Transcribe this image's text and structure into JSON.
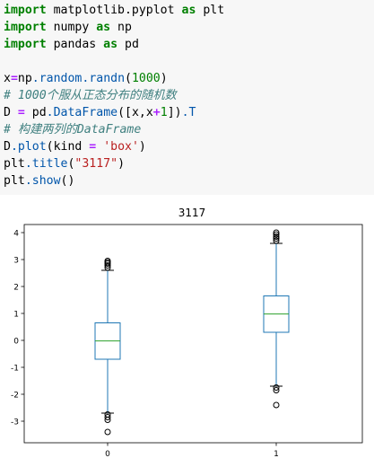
{
  "code": {
    "lines": [
      [
        {
          "t": "import",
          "c": "kw"
        },
        {
          "t": " matplotlib.pyplot ",
          "c": ""
        },
        {
          "t": "as",
          "c": "kw"
        },
        {
          "t": " plt",
          "c": ""
        }
      ],
      [
        {
          "t": "import",
          "c": "kw"
        },
        {
          "t": " numpy ",
          "c": ""
        },
        {
          "t": "as",
          "c": "kw"
        },
        {
          "t": " np",
          "c": ""
        }
      ],
      [
        {
          "t": "import",
          "c": "kw"
        },
        {
          "t": " pandas ",
          "c": ""
        },
        {
          "t": "as",
          "c": "kw"
        },
        {
          "t": " pd",
          "c": ""
        }
      ],
      [],
      [
        {
          "t": "x",
          "c": ""
        },
        {
          "t": "=",
          "c": "op"
        },
        {
          "t": "np",
          "c": ""
        },
        {
          "t": ".random.randn",
          "c": "attr"
        },
        {
          "t": "(",
          "c": ""
        },
        {
          "t": "1000",
          "c": "num"
        },
        {
          "t": ")",
          "c": ""
        }
      ],
      [
        {
          "t": "# 1000个服从正态分布的随机数",
          "c": "comment"
        }
      ],
      [
        {
          "t": "D ",
          "c": ""
        },
        {
          "t": "=",
          "c": "op"
        },
        {
          "t": " pd",
          "c": ""
        },
        {
          "t": ".DataFrame",
          "c": "attr"
        },
        {
          "t": "([x,x",
          "c": ""
        },
        {
          "t": "+",
          "c": "op"
        },
        {
          "t": "1",
          "c": "num"
        },
        {
          "t": "])",
          "c": ""
        },
        {
          "t": ".T",
          "c": "attr"
        }
      ],
      [
        {
          "t": "# 构建两列的DataFrame",
          "c": "comment"
        }
      ],
      [
        {
          "t": "D",
          "c": ""
        },
        {
          "t": ".plot",
          "c": "attr"
        },
        {
          "t": "(kind ",
          "c": ""
        },
        {
          "t": "=",
          "c": "op"
        },
        {
          "t": " ",
          "c": ""
        },
        {
          "t": "'box'",
          "c": "str"
        },
        {
          "t": ")",
          "c": ""
        }
      ],
      [
        {
          "t": "plt",
          "c": ""
        },
        {
          "t": ".title",
          "c": "attr"
        },
        {
          "t": "(",
          "c": ""
        },
        {
          "t": "\"3117\"",
          "c": "str"
        },
        {
          "t": ")",
          "c": ""
        }
      ],
      [
        {
          "t": "plt",
          "c": ""
        },
        {
          "t": ".show",
          "c": "attr"
        },
        {
          "t": "()",
          "c": ""
        }
      ]
    ]
  },
  "chart_data": {
    "type": "box",
    "title": "3117",
    "categories": [
      "0",
      "1"
    ],
    "ylim": [
      -3.8,
      4.3
    ],
    "yticks": [
      -3,
      -2,
      -1,
      0,
      1,
      2,
      3,
      4
    ],
    "boxes": [
      {
        "whislo": -2.7,
        "q1": -0.7,
        "med": -0.02,
        "q3": 0.65,
        "whishi": 2.6,
        "fliers": [
          2.7,
          2.78,
          2.85,
          2.9,
          2.95,
          -2.75,
          -2.85,
          -2.95,
          -3.4
        ]
      },
      {
        "whislo": -1.7,
        "q1": 0.3,
        "med": 0.98,
        "q3": 1.65,
        "whishi": 3.6,
        "fliers": [
          3.7,
          3.78,
          3.85,
          3.93,
          4.0,
          -1.75,
          -1.85,
          -2.4
        ]
      }
    ],
    "colors": {
      "box": "#1f77b4",
      "median": "#2ca02c",
      "flier": "#000000"
    },
    "grid": false
  }
}
